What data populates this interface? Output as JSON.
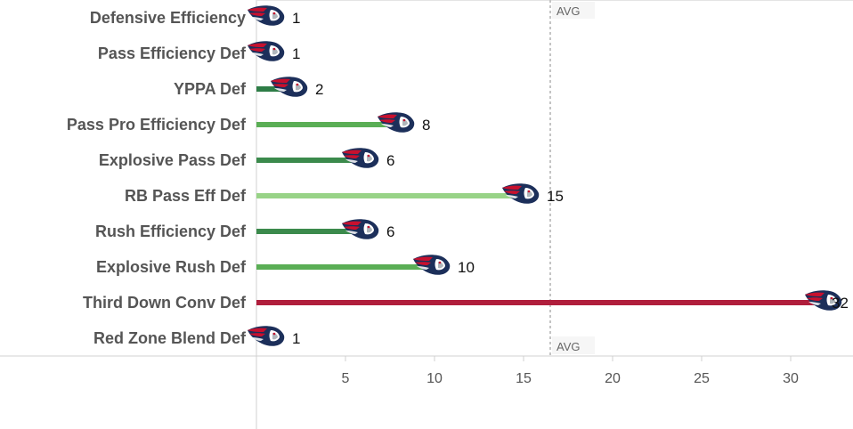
{
  "chart_data": {
    "type": "bar",
    "orientation": "horizontal",
    "categories": [
      "Defensive Efficiency",
      "Pass Efficiency Def",
      "YPPA Def",
      "Pass Pro Efficiency Def",
      "Explosive Pass Def",
      "RB Pass Eff Def",
      "Rush Efficiency Def",
      "Explosive Rush Def",
      "Third Down Conv Def",
      "Red Zone Blend Def"
    ],
    "values": [
      1,
      1,
      2,
      8,
      6,
      15,
      6,
      10,
      32,
      1
    ],
    "bar_colors": [
      "#2e7d46",
      "#2e7d46",
      "#2e7d46",
      "#5aae55",
      "#3b8a4c",
      "#98d387",
      "#3b8a4c",
      "#5aae55",
      "#b01e3c",
      "#2e7d46"
    ],
    "x_ticks": [
      5,
      10,
      15,
      20,
      25,
      30
    ],
    "xlim": [
      0,
      33.5
    ],
    "reference_line": {
      "label": "AVG",
      "value": 16.5
    },
    "title": "",
    "xlabel": "",
    "ylabel": "",
    "grid": false,
    "marker_icon": "patriots-logo-icon",
    "logo_colors": {
      "navy": "#1c2f5a",
      "red": "#c8102e",
      "silver": "#b0b7bc"
    }
  }
}
